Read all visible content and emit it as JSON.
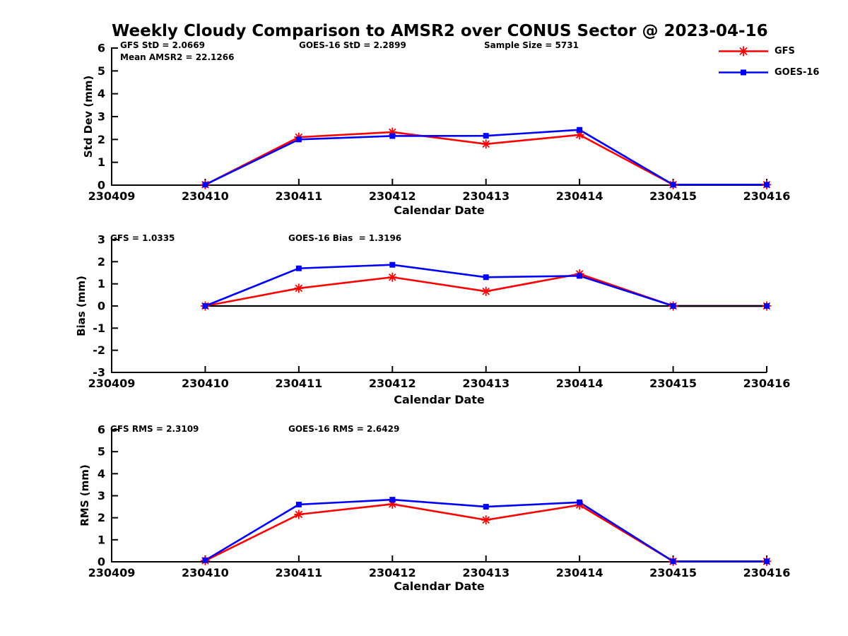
{
  "title": "Weekly Cloudy Comparison to AMSR2 over CONUS Sector @ 2023-04-16",
  "legend": {
    "items": [
      {
        "label": "GFS",
        "color": "#ff0000",
        "marker": "asterisk"
      },
      {
        "label": "GOES-16",
        "color": "#0000ff",
        "marker": "square"
      }
    ]
  },
  "colors": {
    "gfs": "#ff0000",
    "goes16": "#0000ff",
    "axis": "#000000"
  },
  "chart_data": [
    {
      "id": "stddev",
      "type": "line",
      "ylabel": "Std Dev (mm)",
      "xlabel": "Calendar Date",
      "ylim": [
        0,
        6
      ],
      "yticks": [
        0,
        1,
        2,
        3,
        4,
        5,
        6
      ],
      "categories": [
        "230409",
        "230410",
        "230411",
        "230412",
        "230413",
        "230414",
        "230415",
        "230416"
      ],
      "x_indices": [
        1,
        2,
        3,
        4,
        5,
        6,
        7
      ],
      "zero_line": false,
      "series": [
        {
          "name": "GFS",
          "color": "#ff0000",
          "marker": "asterisk",
          "values": [
            0.02,
            2.1,
            2.32,
            1.8,
            2.2,
            0.02,
            0.02
          ]
        },
        {
          "name": "GOES-16",
          "color": "#0000ff",
          "marker": "square",
          "values": [
            0.02,
            2.0,
            2.15,
            2.16,
            2.42,
            0.02,
            0.02
          ]
        }
      ],
      "annotations": [
        {
          "text": "GFS StD = 2.0669"
        },
        {
          "text": "Mean AMSR2 = 22.1266"
        },
        {
          "text": "GOES-16 StD = 2.2899"
        },
        {
          "text": "Sample Size = 5731"
        }
      ]
    },
    {
      "id": "bias",
      "type": "line",
      "ylabel": "Bias (mm)",
      "xlabel": "Calendar Date",
      "ylim": [
        -3,
        3
      ],
      "yticks": [
        -3,
        -2,
        -1,
        0,
        1,
        2,
        3
      ],
      "categories": [
        "230409",
        "230410",
        "230411",
        "230412",
        "230413",
        "230414",
        "230415",
        "230416"
      ],
      "x_indices": [
        1,
        2,
        3,
        4,
        5,
        6,
        7
      ],
      "zero_line": true,
      "series": [
        {
          "name": "GFS",
          "color": "#ff0000",
          "marker": "asterisk",
          "values": [
            0.0,
            0.8,
            1.3,
            0.66,
            1.45,
            0.0,
            0.0
          ]
        },
        {
          "name": "GOES-16",
          "color": "#0000ff",
          "marker": "square",
          "values": [
            0.0,
            1.7,
            1.86,
            1.3,
            1.36,
            0.0,
            0.0
          ]
        }
      ],
      "annotations": [
        {
          "text": "GFS = 1.0335"
        },
        {
          "text": "GOES-16 Bias  = 1.3196"
        }
      ]
    },
    {
      "id": "rms",
      "type": "line",
      "ylabel": "RMS (mm)",
      "xlabel": "Calendar Date",
      "ylim": [
        0,
        6
      ],
      "yticks": [
        0,
        1,
        2,
        3,
        4,
        5,
        6
      ],
      "categories": [
        "230409",
        "230410",
        "230411",
        "230412",
        "230413",
        "230414",
        "230415",
        "230416"
      ],
      "x_indices": [
        1,
        2,
        3,
        4,
        5,
        6,
        7
      ],
      "zero_line": false,
      "series": [
        {
          "name": "GFS",
          "color": "#ff0000",
          "marker": "asterisk",
          "values": [
            0.05,
            2.15,
            2.62,
            1.9,
            2.58,
            0.02,
            0.02
          ]
        },
        {
          "name": "GOES-16",
          "color": "#0000ff",
          "marker": "square",
          "values": [
            0.07,
            2.6,
            2.82,
            2.5,
            2.7,
            0.02,
            0.02
          ]
        }
      ],
      "annotations": [
        {
          "text": "GFS RMS = 2.3109"
        },
        {
          "text": "GOES-16 RMS = 2.6429"
        }
      ]
    }
  ]
}
